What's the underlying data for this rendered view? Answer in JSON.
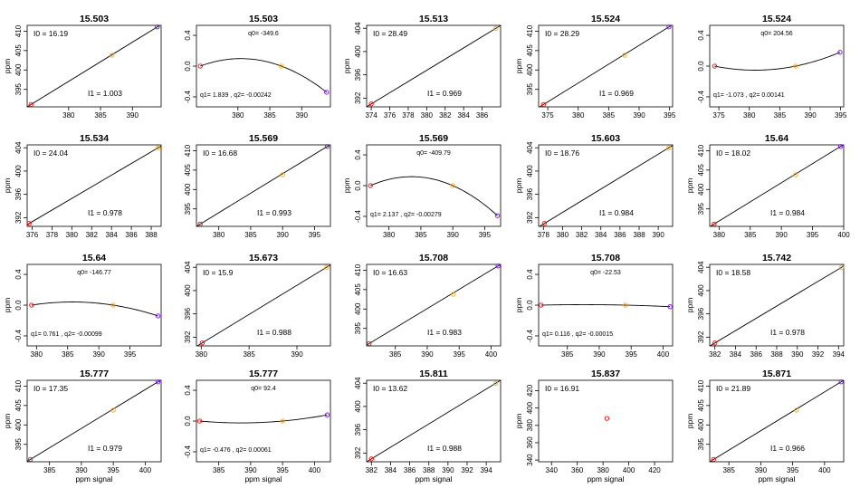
{
  "colors": {
    "first": "#ff0000",
    "mid": "#ffa500",
    "last": "#8000ff",
    "line": "#000000"
  },
  "chart_data": [
    {
      "type": "scatter",
      "fit": "linear",
      "title": "15.503",
      "xlabel": "",
      "ylabel": "ppm",
      "xlim": [
        373.5,
        394.5
      ],
      "ylim": [
        390.5,
        411.5
      ],
      "xticks": [
        "380",
        "385",
        "390"
      ],
      "yticks": [
        "395",
        "400",
        "405",
        "410"
      ],
      "points": [
        [
          374.1,
          391.1,
          "first"
        ],
        [
          386.8,
          403.8,
          "mid"
        ],
        [
          393.9,
          411.1,
          "last"
        ]
      ],
      "curve": "linear",
      "labels": [
        {
          "text": "I0 =  16.19",
          "pos": "top-left"
        },
        {
          "text": "I1 =  1.003",
          "pos": "bottom-center"
        }
      ]
    },
    {
      "type": "scatter",
      "fit": "quadratic",
      "title": "15.503",
      "xlabel": "",
      "ylabel": "",
      "xlim": [
        373.5,
        394.5
      ],
      "ylim": [
        -0.53,
        0.53
      ],
      "xticks": [
        "380",
        "385",
        "390"
      ],
      "yticks": [
        "-0.4",
        "0.0",
        "0.4"
      ],
      "points": [
        [
          374.1,
          0.0,
          "first"
        ],
        [
          386.8,
          0.0,
          "mid"
        ],
        [
          393.9,
          -0.34,
          "last"
        ]
      ],
      "curve": "quadratic",
      "labels": [
        {
          "text": "q0= -349.6",
          "pos": "top-center"
        },
        {
          "text": "q1= 1.839 ,  q2= -0.00242",
          "pos": "bottom-left"
        }
      ]
    },
    {
      "type": "scatter",
      "fit": "linear",
      "title": "15.513",
      "xlabel": "",
      "ylabel": "ppm",
      "xlim": [
        373.5,
        388
      ],
      "ylim": [
        390.5,
        404.5
      ],
      "xticks": [
        "374",
        "376",
        "378",
        "380",
        "382",
        "384",
        "386"
      ],
      "yticks": [
        "392",
        "396",
        "400",
        "404"
      ],
      "points": [
        [
          374.0,
          391.0,
          "first"
        ],
        [
          387.5,
          404.0,
          "mid"
        ]
      ],
      "curve": "linear",
      "labels": [
        {
          "text": "I0 =  28.49",
          "pos": "top-left"
        },
        {
          "text": "I1 =  0.969",
          "pos": "bottom-center"
        }
      ]
    },
    {
      "type": "scatter",
      "fit": "linear",
      "title": "15.524",
      "xlabel": "",
      "ylabel": "ppm",
      "xlim": [
        373.5,
        395.5
      ],
      "ylim": [
        390.5,
        411.5
      ],
      "xticks": [
        "375",
        "380",
        "385",
        "390",
        "395"
      ],
      "yticks": [
        "395",
        "400",
        "405",
        "410"
      ],
      "points": [
        [
          374.3,
          391.1,
          "first"
        ],
        [
          387.6,
          403.8,
          "mid"
        ],
        [
          394.9,
          411.1,
          "last"
        ]
      ],
      "curve": "linear",
      "labels": [
        {
          "text": "I0 =  28.29",
          "pos": "top-left"
        },
        {
          "text": "I1 =  0.969",
          "pos": "bottom-center"
        }
      ]
    },
    {
      "type": "scatter",
      "fit": "quadratic",
      "title": "15.524",
      "xlabel": "",
      "ylabel": "",
      "xlim": [
        373.5,
        395.5
      ],
      "ylim": [
        -0.53,
        0.53
      ],
      "xticks": [
        "375",
        "380",
        "385",
        "390",
        "395"
      ],
      "yticks": [
        "-0.4",
        "0.0",
        "0.4"
      ],
      "points": [
        [
          374.3,
          0.0,
          "first"
        ],
        [
          387.6,
          0.0,
          "mid"
        ],
        [
          394.9,
          0.18,
          "last"
        ]
      ],
      "curve": "quadratic",
      "labels": [
        {
          "text": "q0= 204.56",
          "pos": "top-center"
        },
        {
          "text": "q1= -1.073 ,  q2= 0.00141",
          "pos": "bottom-left"
        }
      ]
    },
    {
      "type": "scatter",
      "fit": "linear",
      "title": "15.534",
      "xlabel": "",
      "ylabel": "ppm",
      "xlim": [
        375.5,
        389
      ],
      "ylim": [
        390.5,
        404.5
      ],
      "xticks": [
        "376",
        "378",
        "380",
        "382",
        "384",
        "386",
        "388"
      ],
      "yticks": [
        "392",
        "396",
        "400",
        "404"
      ],
      "points": [
        [
          375.7,
          391.0,
          "first"
        ],
        [
          388.7,
          404.0,
          "mid"
        ]
      ],
      "curve": "linear",
      "labels": [
        {
          "text": "I0 =  24.04",
          "pos": "top-left"
        },
        {
          "text": "I1 =  0.978",
          "pos": "bottom-center"
        }
      ]
    },
    {
      "type": "scatter",
      "fit": "linear",
      "title": "15.569",
      "xlabel": "",
      "ylabel": "",
      "xlim": [
        376.5,
        397.5
      ],
      "ylim": [
        390.5,
        411.5
      ],
      "xticks": [
        "380",
        "385",
        "390",
        "395"
      ],
      "yticks": [
        "395",
        "400",
        "405",
        "410"
      ],
      "points": [
        [
          377.1,
          391.1,
          "first"
        ],
        [
          390.0,
          403.8,
          "mid"
        ],
        [
          397.0,
          411.1,
          "last"
        ]
      ],
      "curve": "linear",
      "labels": [
        {
          "text": "I0 =  16.68",
          "pos": "top-left"
        },
        {
          "text": "I1 =  0.993",
          "pos": "bottom-center"
        }
      ]
    },
    {
      "type": "scatter",
      "fit": "quadratic",
      "title": "15.569",
      "xlabel": "",
      "ylabel": "ppm",
      "xlim": [
        376.5,
        397.5
      ],
      "ylim": [
        -0.53,
        0.53
      ],
      "xticks": [
        "380",
        "385",
        "390",
        "395"
      ],
      "yticks": [
        "-0.4",
        "0.0",
        "0.4"
      ],
      "points": [
        [
          377.1,
          0.0,
          "first"
        ],
        [
          390.0,
          0.0,
          "mid"
        ],
        [
          397.0,
          -0.39,
          "last"
        ]
      ],
      "curve": "quadratic",
      "labels": [
        {
          "text": "q0= -409.79",
          "pos": "top-center"
        },
        {
          "text": "q1= 2.137 ,  q2= -0.00279",
          "pos": "bottom-left"
        }
      ]
    },
    {
      "type": "scatter",
      "fit": "linear",
      "title": "15.603",
      "xlabel": "",
      "ylabel": "ppm",
      "xlim": [
        377.5,
        391.5
      ],
      "ylim": [
        390.5,
        404.5
      ],
      "xticks": [
        "378",
        "380",
        "382",
        "384",
        "386",
        "388",
        "390"
      ],
      "yticks": [
        "392",
        "396",
        "400",
        "404"
      ],
      "points": [
        [
          378.1,
          391.0,
          "first"
        ],
        [
          391.1,
          404.0,
          "mid"
        ]
      ],
      "curve": "linear",
      "labels": [
        {
          "text": "I0 =  18.76",
          "pos": "top-left"
        },
        {
          "text": "I1 =  0.984",
          "pos": "bottom-center"
        }
      ]
    },
    {
      "type": "scatter",
      "fit": "linear",
      "title": "15.64",
      "xlabel": "",
      "ylabel": "ppm",
      "xlim": [
        378.5,
        400
      ],
      "ylim": [
        390.5,
        411.5
      ],
      "xticks": [
        "380",
        "385",
        "390",
        "395",
        "400"
      ],
      "yticks": [
        "395",
        "400",
        "405",
        "410"
      ],
      "points": [
        [
          379.2,
          391.1,
          "first"
        ],
        [
          392.3,
          403.8,
          "mid"
        ],
        [
          399.5,
          411.1,
          "last"
        ]
      ],
      "curve": "linear",
      "labels": [
        {
          "text": "I0 =  18.02",
          "pos": "top-left"
        },
        {
          "text": "I1 =  0.984",
          "pos": "bottom-center"
        }
      ]
    },
    {
      "type": "scatter",
      "fit": "quadratic",
      "title": "15.64",
      "xlabel": "",
      "ylabel": "ppm",
      "xlim": [
        378.5,
        400
      ],
      "ylim": [
        -0.53,
        0.53
      ],
      "xticks": [
        "380",
        "385",
        "390",
        "395"
      ],
      "yticks": [
        "-0.4",
        "0.0",
        "0.4"
      ],
      "points": [
        [
          379.2,
          0.0,
          "first"
        ],
        [
          392.3,
          0.0,
          "mid"
        ],
        [
          399.5,
          -0.14,
          "last"
        ]
      ],
      "curve": "quadratic",
      "labels": [
        {
          "text": "q0= -146.77",
          "pos": "top-center"
        },
        {
          "text": "q1= 0.761 ,  q2= -0.00099",
          "pos": "bottom-left"
        }
      ]
    },
    {
      "type": "scatter",
      "fit": "linear",
      "title": "15.673",
      "xlabel": "",
      "ylabel": "",
      "xlim": [
        379.5,
        393.5
      ],
      "ylim": [
        390.5,
        404.5
      ],
      "xticks": [
        "380",
        "385",
        "390"
      ],
      "yticks": [
        "392",
        "396",
        "400",
        "404"
      ],
      "points": [
        [
          380.1,
          391.0,
          "first"
        ],
        [
          393.1,
          404.0,
          "mid"
        ]
      ],
      "curve": "linear",
      "labels": [
        {
          "text": "I0 =  15.9",
          "pos": "top-left"
        },
        {
          "text": "I1 =  0.988",
          "pos": "bottom-center"
        }
      ]
    },
    {
      "type": "scatter",
      "fit": "linear",
      "title": "15.708",
      "xlabel": "",
      "ylabel": "",
      "xlim": [
        380.5,
        401.5
      ],
      "ylim": [
        390.5,
        411.5
      ],
      "xticks": [
        "385",
        "390",
        "395",
        "400"
      ],
      "yticks": [
        "395",
        "400",
        "405",
        "410"
      ],
      "points": [
        [
          380.9,
          391.1,
          "first"
        ],
        [
          394.1,
          403.8,
          "mid"
        ],
        [
          401.1,
          411.1,
          "last"
        ]
      ],
      "curve": "linear",
      "labels": [
        {
          "text": "I0 =  16.63",
          "pos": "top-left"
        },
        {
          "text": "I1 =  0.983",
          "pos": "bottom-center"
        }
      ]
    },
    {
      "type": "scatter",
      "fit": "quadratic",
      "title": "15.708",
      "xlabel": "",
      "ylabel": "ppm",
      "xlim": [
        380.5,
        401.5
      ],
      "ylim": [
        -0.53,
        0.53
      ],
      "xticks": [
        "385",
        "390",
        "395",
        "400"
      ],
      "yticks": [
        "-0.4",
        "0.0",
        "0.4"
      ],
      "points": [
        [
          380.9,
          0.0,
          "first"
        ],
        [
          394.1,
          0.0,
          "mid"
        ],
        [
          401.1,
          -0.02,
          "last"
        ]
      ],
      "curve": "quadratic",
      "labels": [
        {
          "text": "q0= -22.53",
          "pos": "top-center"
        },
        {
          "text": "q1= 0.116 ,  q2= -0.00015",
          "pos": "bottom-left"
        }
      ]
    },
    {
      "type": "scatter",
      "fit": "linear",
      "title": "15.742",
      "xlabel": "",
      "ylabel": "ppm",
      "xlim": [
        381.5,
        394.5
      ],
      "ylim": [
        390.5,
        404.5
      ],
      "xticks": [
        "382",
        "384",
        "386",
        "388",
        "390",
        "392",
        "394"
      ],
      "yticks": [
        "392",
        "396",
        "400",
        "404"
      ],
      "points": [
        [
          382.0,
          391.0,
          "first"
        ],
        [
          394.3,
          404.0,
          "mid"
        ]
      ],
      "curve": "linear",
      "labels": [
        {
          "text": "I0 =  18.58",
          "pos": "top-left"
        },
        {
          "text": "I1 =  0.978",
          "pos": "bottom-center"
        }
      ]
    },
    {
      "type": "scatter",
      "fit": "linear",
      "title": "15.777",
      "xlabel": "ppm signal",
      "ylabel": "ppm",
      "xlim": [
        381.5,
        402.5
      ],
      "ylim": [
        390.5,
        411.5
      ],
      "xticks": [
        "385",
        "390",
        "395",
        "400"
      ],
      "yticks": [
        "395",
        "400",
        "405",
        "410"
      ],
      "points": [
        [
          382.0,
          391.1,
          "first"
        ],
        [
          395.0,
          403.8,
          "mid"
        ],
        [
          402.0,
          411.1,
          "last"
        ]
      ],
      "curve": "linear",
      "labels": [
        {
          "text": "I0 =  17.35",
          "pos": "top-left"
        },
        {
          "text": "I1 =  0.979",
          "pos": "bottom-center"
        }
      ]
    },
    {
      "type": "scatter",
      "fit": "quadratic",
      "title": "15.777",
      "xlabel": "ppm signal",
      "ylabel": "",
      "xlim": [
        381.5,
        402.5
      ],
      "ylim": [
        -0.53,
        0.53
      ],
      "xticks": [
        "385",
        "390",
        "395",
        "400"
      ],
      "yticks": [
        "-0.4",
        "0.0",
        "0.4"
      ],
      "points": [
        [
          382.0,
          0.0,
          "first"
        ],
        [
          395.0,
          0.0,
          "mid"
        ],
        [
          402.0,
          0.08,
          "last"
        ]
      ],
      "curve": "quadratic",
      "labels": [
        {
          "text": "q0= 92.4",
          "pos": "top-center"
        },
        {
          "text": "q1= -0.476 ,  q2= 0.00061",
          "pos": "bottom-left"
        }
      ]
    },
    {
      "type": "scatter",
      "fit": "linear",
      "title": "15.811",
      "xlabel": "ppm signal",
      "ylabel": "",
      "xlim": [
        381.5,
        395.5
      ],
      "ylim": [
        390.5,
        404.5
      ],
      "xticks": [
        "382",
        "384",
        "386",
        "388",
        "390",
        "392",
        "394"
      ],
      "yticks": [
        "392",
        "396",
        "400",
        "404"
      ],
      "points": [
        [
          382.0,
          391.0,
          "first"
        ],
        [
          395.0,
          404.0,
          "mid"
        ]
      ],
      "curve": "linear",
      "labels": [
        {
          "text": "I0 =  13.62",
          "pos": "top-left"
        },
        {
          "text": "I1 =  0.988",
          "pos": "bottom-center"
        }
      ]
    },
    {
      "type": "scatter",
      "fit": "none",
      "title": "15.837",
      "xlabel": "ppm signal",
      "ylabel": "ppm",
      "xlim": [
        330,
        434
      ],
      "ylim": [
        338,
        432
      ],
      "xticks": [
        "340",
        "360",
        "380",
        "400",
        "420"
      ],
      "yticks": [
        "340",
        "360",
        "380",
        "400",
        "420"
      ],
      "points": [
        [
          383,
          388,
          "first"
        ]
      ],
      "curve": "none",
      "labels": [
        {
          "text": "I0 =  16.91",
          "pos": "top-left"
        }
      ]
    },
    {
      "type": "scatter",
      "fit": "linear",
      "title": "15.871",
      "xlabel": "ppm signal",
      "ylabel": "ppm",
      "xlim": [
        382,
        403
      ],
      "ylim": [
        390.5,
        411.5
      ],
      "xticks": [
        "385",
        "390",
        "395",
        "400"
      ],
      "yticks": [
        "395",
        "400",
        "405",
        "410"
      ],
      "points": [
        [
          382.6,
          391.1,
          "first"
        ],
        [
          395.6,
          403.8,
          "mid"
        ],
        [
          402.6,
          411.1,
          "last"
        ]
      ],
      "curve": "linear",
      "labels": [
        {
          "text": "I0 =  21.89",
          "pos": "top-left"
        },
        {
          "text": "I1 =  0.966",
          "pos": "bottom-center"
        }
      ]
    }
  ]
}
